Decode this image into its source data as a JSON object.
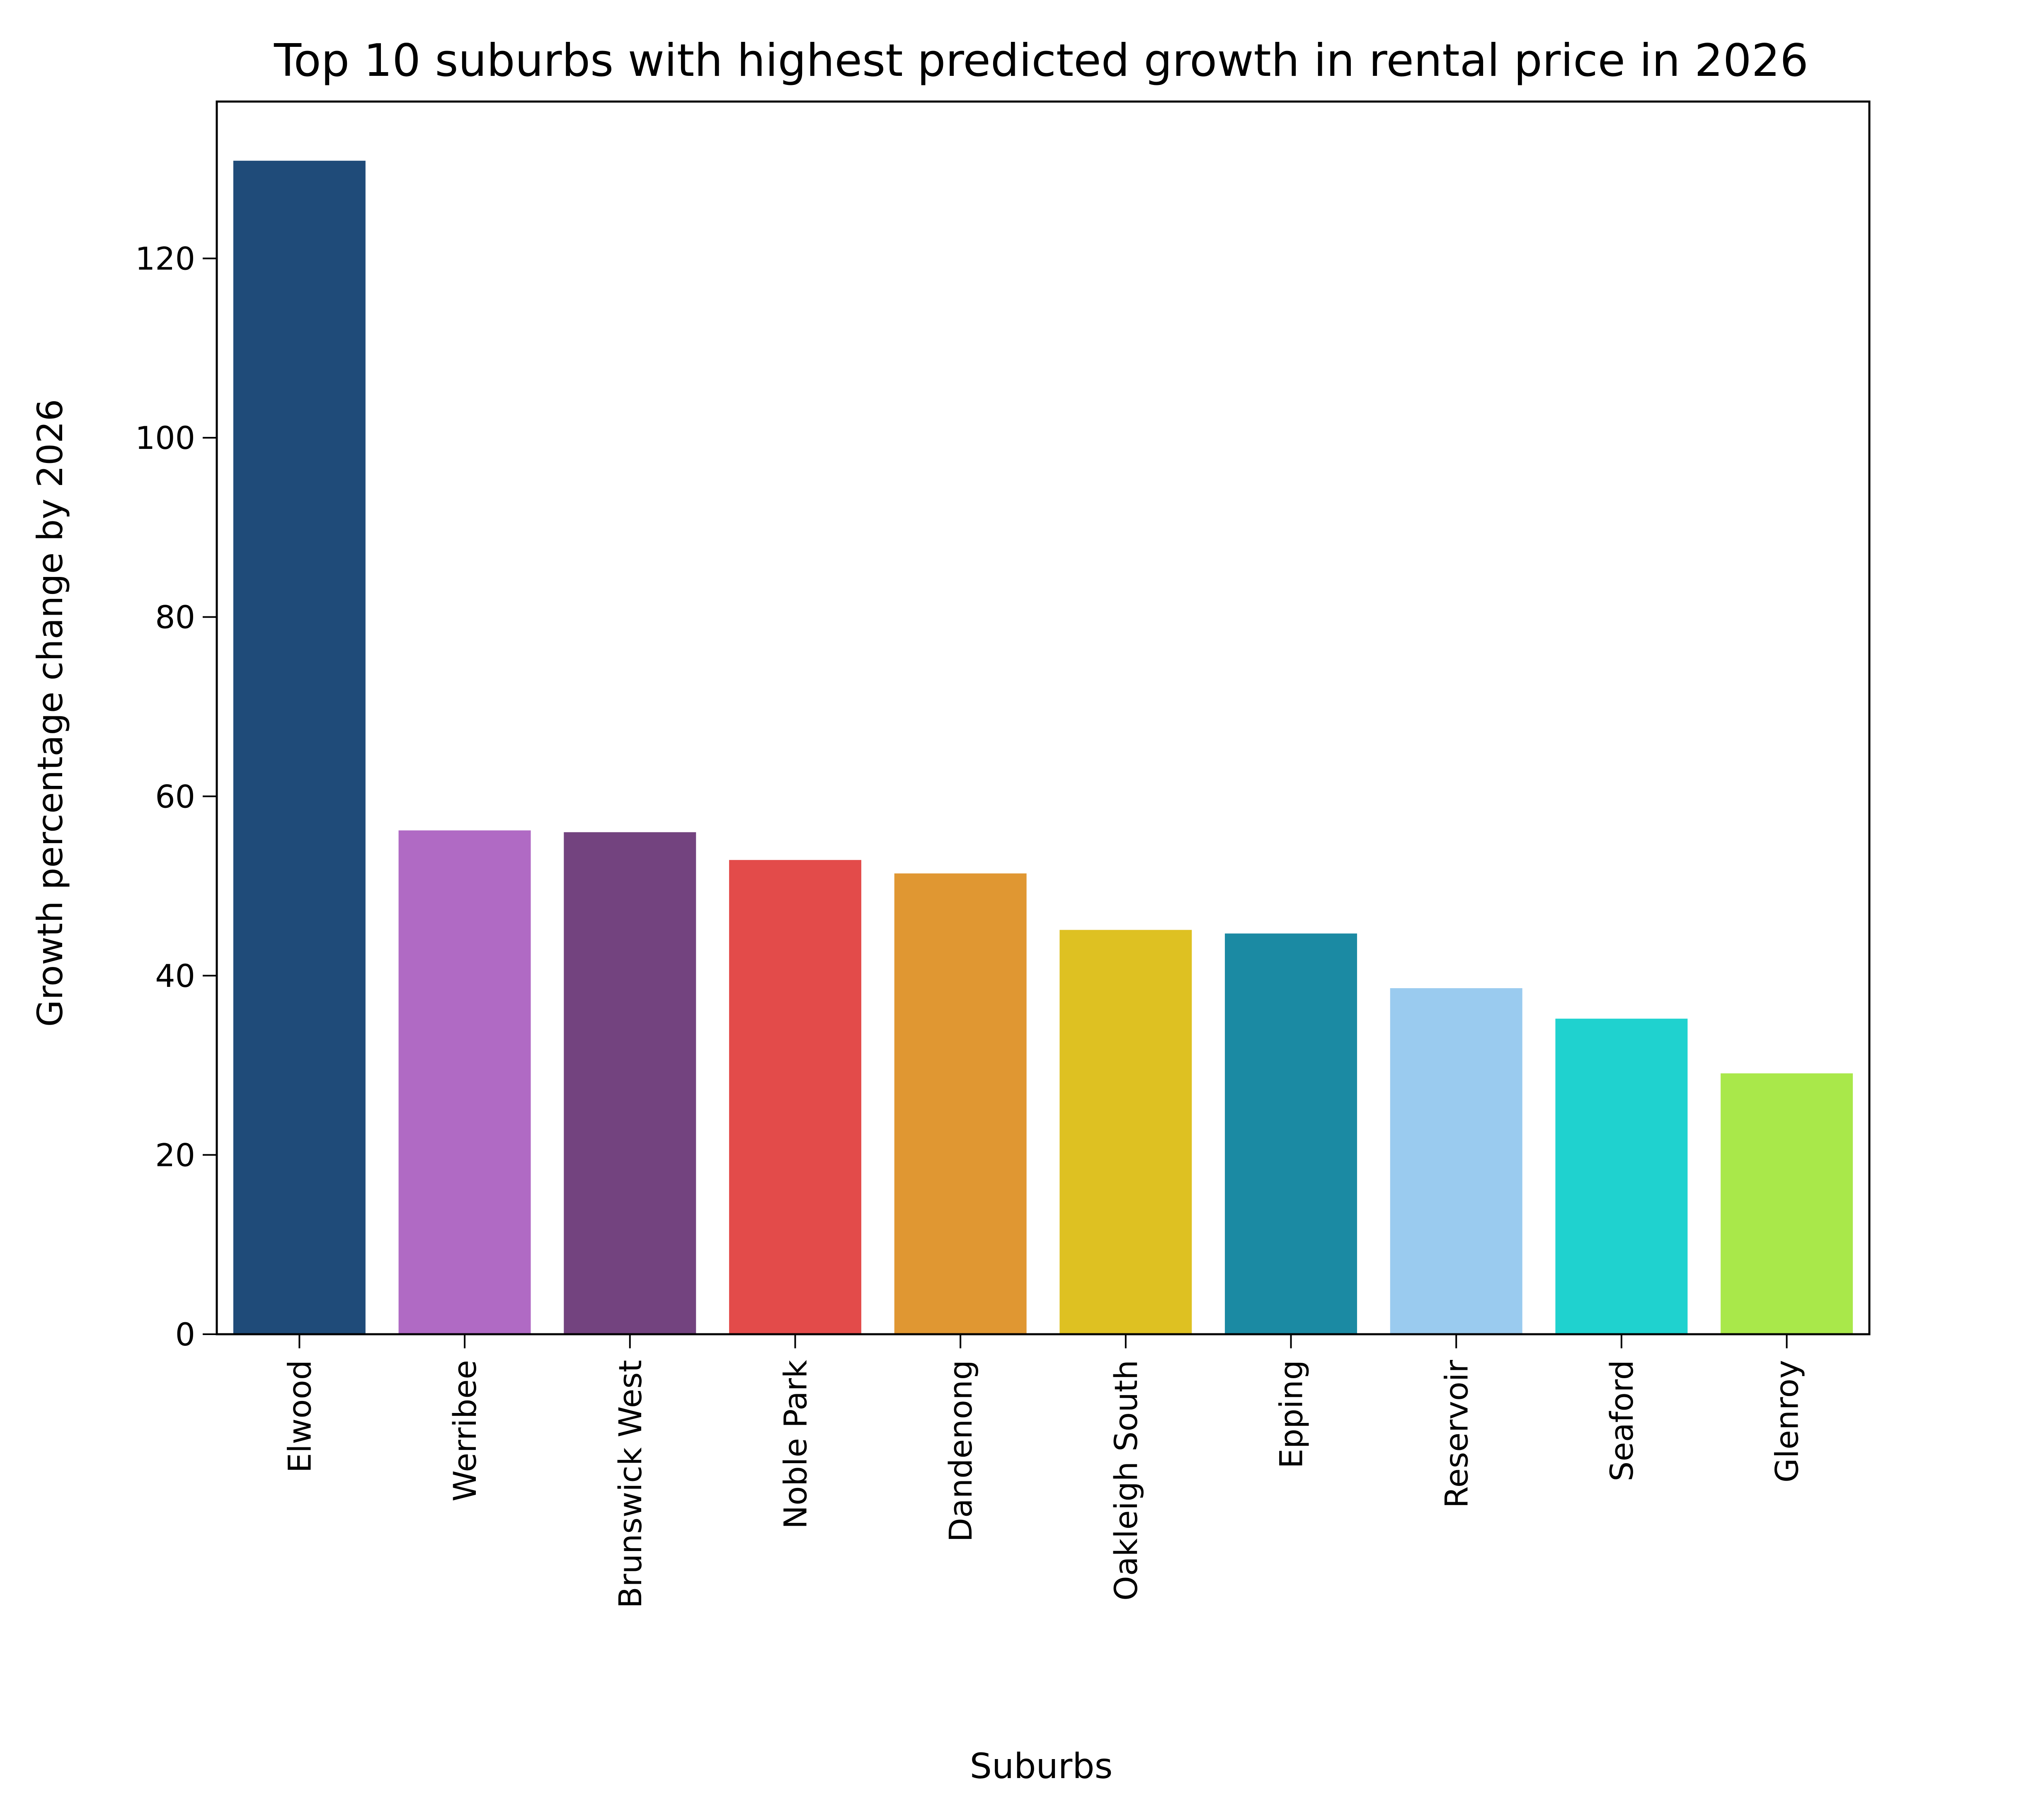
{
  "chart_data": {
    "type": "bar",
    "title": "Top 10 suburbs with highest predicted growth in rental price in 2026",
    "xlabel": "Suburbs",
    "ylabel": "Growth percentage change by 2026",
    "categories": [
      "Elwood",
      "Werribee",
      "Brunswick West",
      "Noble Park",
      "Dandenong",
      "Oakleigh South",
      "Epping",
      "Reservoir",
      "Seaford",
      "Glenroy"
    ],
    "values": [
      130.9,
      56.2,
      56.0,
      52.9,
      51.4,
      45.1,
      44.7,
      38.6,
      35.2,
      29.1
    ],
    "colors": [
      "#1f4b79",
      "#b06ac4",
      "#73437f",
      "#e34b4a",
      "#e09732",
      "#dec122",
      "#1b8aa3",
      "#9acbef",
      "#1fd2cf",
      "#a9e84a"
    ],
    "ylim": [
      0,
      137.5
    ],
    "yticks": [
      0,
      20,
      40,
      60,
      80,
      100,
      120
    ],
    "grid": false,
    "legend": "none"
  }
}
